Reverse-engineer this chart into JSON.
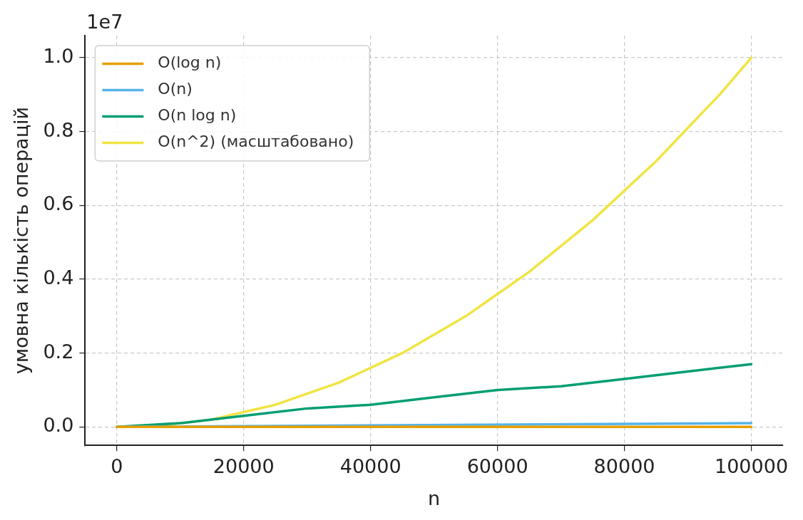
{
  "chart_data": {
    "type": "line",
    "xlabel": "n",
    "ylabel": "умовна кількість операцій",
    "annotations": [
      "1e7"
    ],
    "xlim": [
      -5000,
      105000
    ],
    "xticks": [
      0,
      20000,
      40000,
      60000,
      80000,
      100000
    ],
    "ylim": [
      -0.05,
      1.06
    ],
    "yticks": [
      {
        "value": 0,
        "label": "0.0"
      },
      0.2,
      0.4,
      0.6,
      0.8,
      {
        "value": 1,
        "label": "1.0"
      }
    ],
    "grid": true,
    "legend": "top left",
    "marker": "none",
    "line_style": "solid",
    "series": [
      {
        "name": "O(log n)",
        "color": "#e69f00",
        "x": [
          0,
          100000
        ],
        "values": [
          0,
          0
        ]
      },
      {
        "name": "O(n)",
        "color": "#56b4e9",
        "x": [
          0,
          100000
        ],
        "values": [
          0,
          0.01
        ]
      },
      {
        "name": "O(n log n)",
        "color": "#009e73",
        "x": [
          0,
          10000,
          20000,
          30000,
          40000,
          50000,
          60000,
          70000,
          80000,
          90000,
          100000
        ],
        "values": [
          0,
          0.01,
          0.03,
          0.05,
          0.06,
          0.08,
          0.1,
          0.11,
          0.13,
          0.15,
          0.17
        ]
      },
      {
        "name": "O(n^2) (масштабовано)",
        "color": "#f0e442",
        "x": [
          0,
          5000,
          10000,
          15000,
          20000,
          25000,
          30000,
          35000,
          40000,
          45000,
          50000,
          55000,
          60000,
          65000,
          70000,
          75000,
          80000,
          85000,
          90000,
          95000,
          100000
        ],
        "values": [
          0,
          0,
          0.01,
          0.02,
          0.04,
          0.06,
          0.09,
          0.12,
          0.16,
          0.2,
          0.25,
          0.3,
          0.36,
          0.42,
          0.49,
          0.56,
          0.64,
          0.72,
          0.81,
          0.9,
          1.0
        ]
      }
    ]
  }
}
